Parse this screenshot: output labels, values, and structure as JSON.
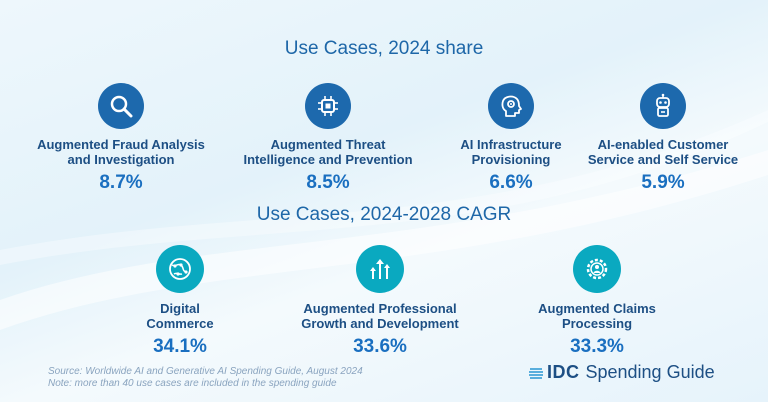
{
  "section1": {
    "title": "Use Cases, 2024 share",
    "items": [
      {
        "label1": "Augmented Fraud Analysis",
        "label2": "and Investigation",
        "value": "8.7%",
        "icon": "magnifier-icon"
      },
      {
        "label1": "Augmented Threat",
        "label2": "Intelligence and Prevention",
        "value": "8.5%",
        "icon": "chip-icon"
      },
      {
        "label1": "AI Infrastructure",
        "label2": "Provisioning",
        "value": "6.6%",
        "icon": "head-gear-icon"
      },
      {
        "label1": "AI-enabled Customer",
        "label2": "Service and Self Service",
        "value": "5.9%",
        "icon": "robot-icon"
      }
    ]
  },
  "section2": {
    "title": "Use Cases, 2024-2028 CAGR",
    "items": [
      {
        "label1": "Digital",
        "label2": "Commerce",
        "value": "34.1%",
        "icon": "globe-network-icon"
      },
      {
        "label1": "Augmented Professional",
        "label2": "Growth and Development",
        "value": "33.6%",
        "icon": "growth-arrows-icon"
      },
      {
        "label1": "Augmented Claims",
        "label2": "Processing",
        "value": "33.3%",
        "icon": "gear-person-icon"
      }
    ]
  },
  "footnote": {
    "line1": "Source: Worldwide AI and Generative AI Spending Guide, August 2024",
    "line2": "Note: more than 40 use cases are included in the spending guide"
  },
  "brand": {
    "idc": "IDC",
    "spending_guide": "Spending Guide"
  },
  "colors": {
    "navy_circle": "#1d69ad",
    "teal_circle": "#0aa9c0",
    "label_text": "#1d4f84",
    "value_text": "#1a6fc0"
  }
}
